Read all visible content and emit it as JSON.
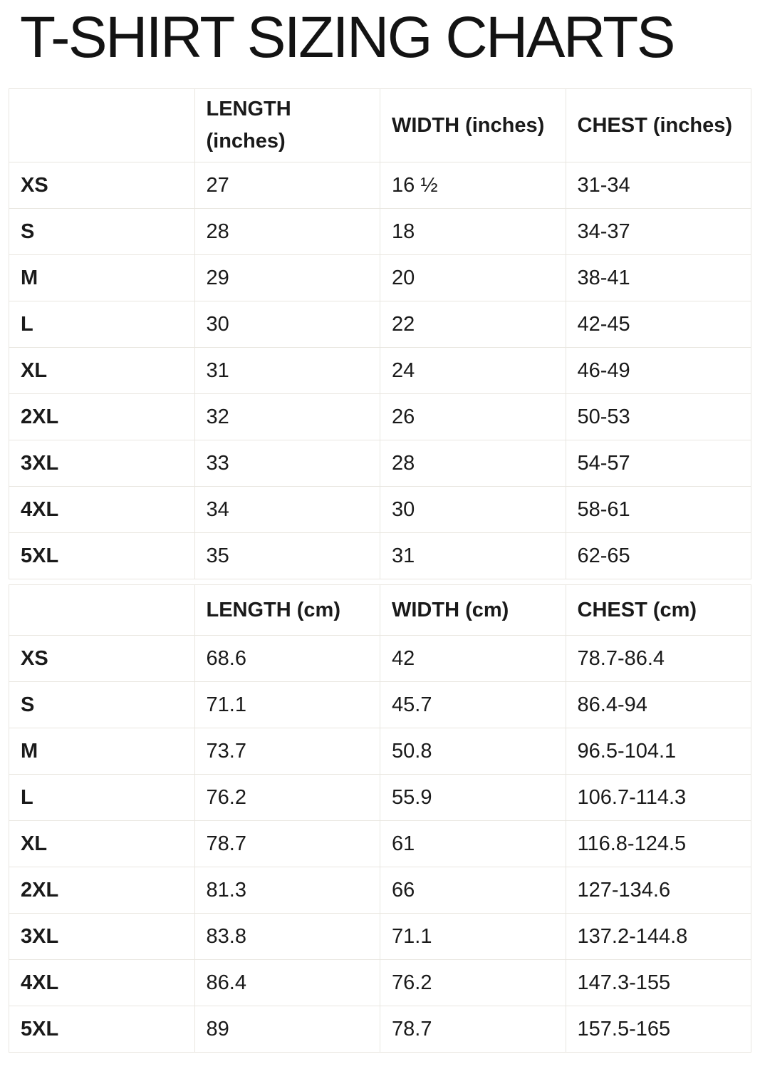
{
  "page_title": "T-SHIRT SIZING CHARTS",
  "colors": {
    "text": "#1a1a1a",
    "border": "#e9e6e0",
    "background": "#ffffff"
  },
  "tables": [
    {
      "name": "inches",
      "headers": [
        "",
        "LENGTH\n(inches)",
        "WIDTH (inches)",
        "CHEST (inches)"
      ],
      "rows": [
        [
          "XS",
          "27",
          "16 ½",
          "31-34"
        ],
        [
          "S",
          "28",
          "18",
          "34-37"
        ],
        [
          "M",
          "29",
          "20",
          "38-41"
        ],
        [
          "L",
          "30",
          "22",
          "42-45"
        ],
        [
          "XL",
          "31",
          "24",
          "46-49"
        ],
        [
          "2XL",
          "32",
          "26",
          "50-53"
        ],
        [
          "3XL",
          "33",
          "28",
          "54-57"
        ],
        [
          "4XL",
          "34",
          "30",
          "58-61"
        ],
        [
          "5XL",
          "35",
          "31",
          "62-65"
        ]
      ]
    },
    {
      "name": "cm",
      "headers": [
        "",
        "LENGTH (cm)",
        "WIDTH (cm)",
        "CHEST (cm)"
      ],
      "rows": [
        [
          "XS",
          "68.6",
          "42",
          "78.7-86.4"
        ],
        [
          "S",
          "71.1",
          "45.7",
          "86.4-94"
        ],
        [
          "M",
          "73.7",
          "50.8",
          "96.5-104.1"
        ],
        [
          "L",
          "76.2",
          "55.9",
          "106.7-114.3"
        ],
        [
          "XL",
          "78.7",
          "61",
          "116.8-124.5"
        ],
        [
          "2XL",
          "81.3",
          "66",
          "127-134.6"
        ],
        [
          "3XL",
          "83.8",
          "71.1",
          "137.2-144.8"
        ],
        [
          "4XL",
          "86.4",
          "76.2",
          "147.3-155"
        ],
        [
          "5XL",
          "89",
          "78.7",
          "157.5-165"
        ]
      ]
    }
  ]
}
